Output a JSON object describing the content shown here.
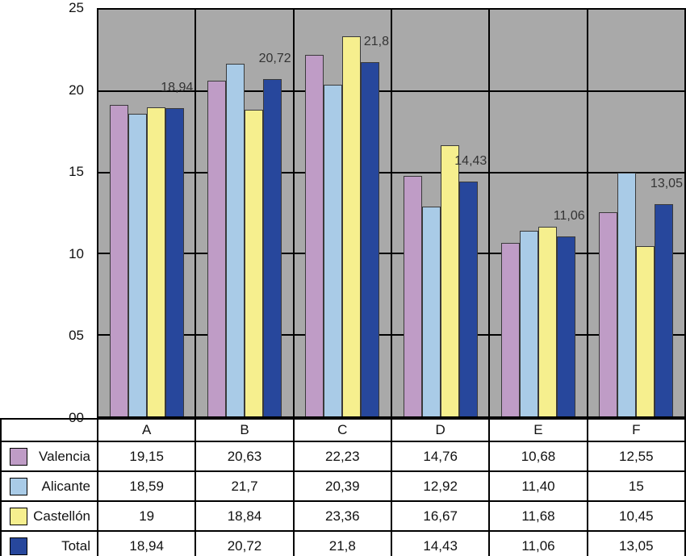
{
  "chart_data": {
    "type": "bar",
    "title": "",
    "xlabel": "",
    "ylabel": "",
    "categories": [
      "A",
      "B",
      "C",
      "D",
      "E",
      "F"
    ],
    "series": [
      {
        "name": "Valencia",
        "color": "#bf9cc6",
        "values": [
          19.15,
          20.63,
          22.23,
          14.76,
          10.68,
          12.55
        ],
        "display": [
          "19,15",
          "20,63",
          "22,23",
          "14,76",
          "10,68",
          "12,55"
        ]
      },
      {
        "name": "Alicante",
        "color": "#a9cbe7",
        "values": [
          18.59,
          21.7,
          20.39,
          12.92,
          11.4,
          15
        ],
        "display": [
          "18,59",
          "21,7",
          "20,39",
          "12,92",
          "11,40",
          "15"
        ]
      },
      {
        "name": "Castellón",
        "color": "#f6ef8e",
        "values": [
          19,
          18.84,
          23.36,
          16.67,
          11.68,
          10.45
        ],
        "display": [
          "19",
          "18,84",
          "23,36",
          "16,67",
          "11,68",
          "10,45"
        ]
      },
      {
        "name": "Total",
        "color": "#27479c",
        "values": [
          18.94,
          20.72,
          21.8,
          14.43,
          11.06,
          13.05
        ],
        "display": [
          "18,94",
          "20,72",
          "21,8",
          "14,43",
          "11,06",
          "13,05"
        ]
      }
    ],
    "annotations": [
      "18,94",
      "20,72",
      "21,8",
      "14,43",
      "11,06",
      "13,05"
    ],
    "ylim": [
      0,
      25
    ],
    "yticks": [
      {
        "label": "25",
        "value": 25
      },
      {
        "label": "20",
        "value": 20
      },
      {
        "label": "15",
        "value": 15
      },
      {
        "label": "10",
        "value": 10
      },
      {
        "label": "05",
        "value": 5
      },
      {
        "label": "00",
        "value": 0
      }
    ],
    "gridline_values": [
      5,
      10,
      15,
      20
    ],
    "plot_bg": "#a9a9a9",
    "grid": true,
    "legend_position": "table-left"
  }
}
